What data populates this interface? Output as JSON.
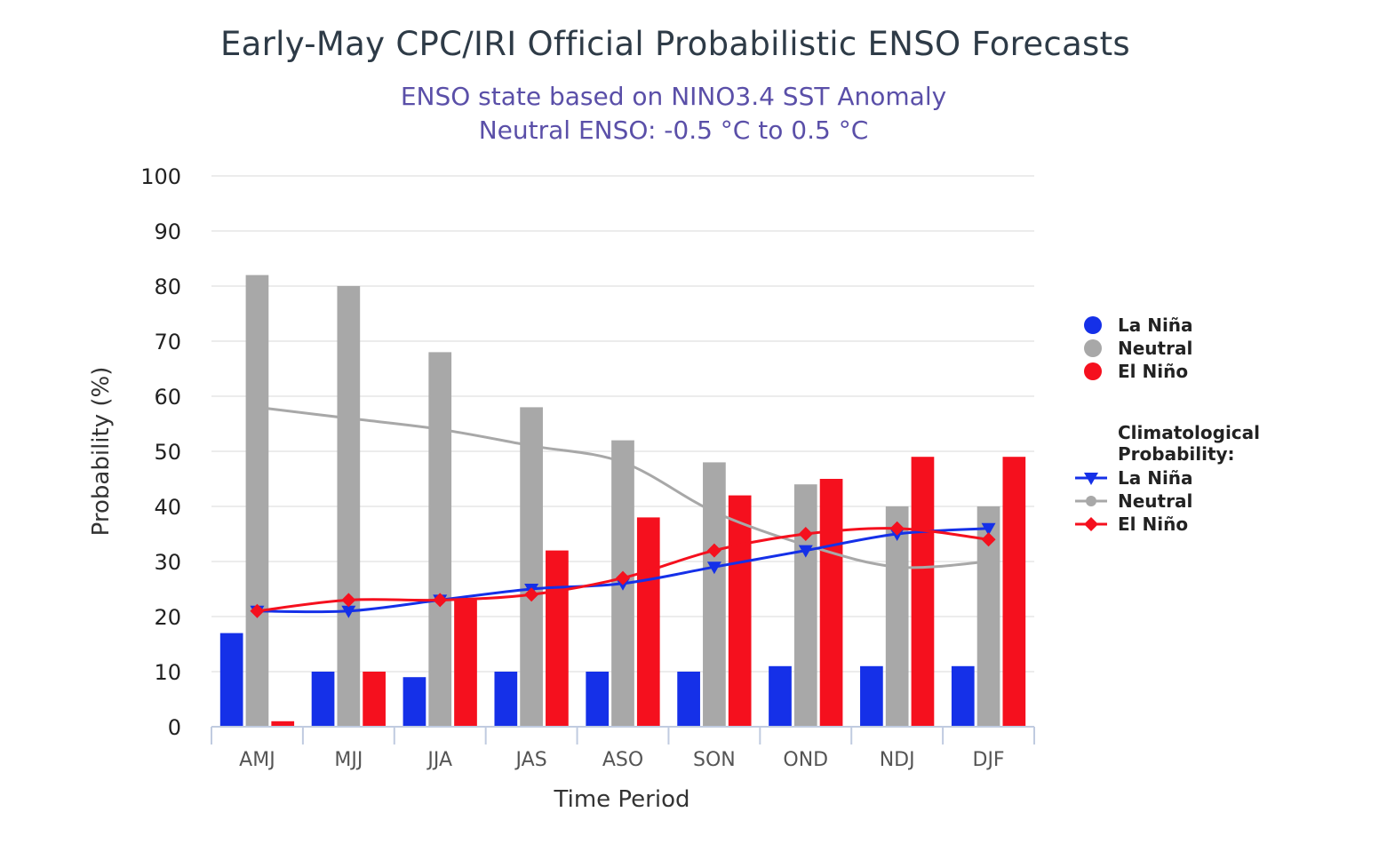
{
  "chart_data": {
    "type": "bar",
    "title": "Early-May CPC/IRI Official Probabilistic ENSO Forecasts",
    "subtitle_lines": [
      "ENSO state based on NINO3.4 SST Anomaly",
      "Neutral ENSO: -0.5 °C to 0.5 °C"
    ],
    "xlabel": "Time Period",
    "ylabel": "Probability (%)",
    "ylim": [
      0,
      100
    ],
    "yticks": [
      0,
      10,
      20,
      30,
      40,
      50,
      60,
      70,
      80,
      90,
      100
    ],
    "grid": true,
    "legend_placement": "right",
    "categories": [
      "AMJ",
      "MJJ",
      "JJA",
      "JAS",
      "ASO",
      "SON",
      "OND",
      "NDJ",
      "DJF"
    ],
    "series": [
      {
        "name": "La Niña",
        "kind": "bar",
        "color": "#1530e8",
        "values": [
          17,
          10,
          9,
          10,
          10,
          10,
          11,
          11,
          11
        ]
      },
      {
        "name": "Neutral",
        "kind": "bar",
        "color": "#a8a8a8",
        "values": [
          82,
          80,
          68,
          58,
          52,
          48,
          44,
          40,
          40
        ]
      },
      {
        "name": "El Niño",
        "kind": "bar",
        "color": "#f5101e",
        "values": [
          1,
          10,
          23,
          32,
          38,
          42,
          45,
          49,
          49
        ]
      }
    ],
    "climatology_heading": "Climatological Probability:",
    "climatology": [
      {
        "name": "La Niña",
        "kind": "line",
        "marker": "triangle-down",
        "color": "#1530e8",
        "values": [
          21,
          21,
          23,
          25,
          26,
          29,
          32,
          35,
          36
        ]
      },
      {
        "name": "Neutral",
        "kind": "line",
        "marker": "circle",
        "color": "#a8a8a8",
        "values": [
          58,
          56,
          54,
          51,
          48,
          39,
          33,
          29,
          30
        ]
      },
      {
        "name": "El Niño",
        "kind": "line",
        "marker": "diamond",
        "color": "#f5101e",
        "values": [
          21,
          23,
          23,
          24,
          27,
          32,
          35,
          36,
          34
        ]
      }
    ]
  }
}
